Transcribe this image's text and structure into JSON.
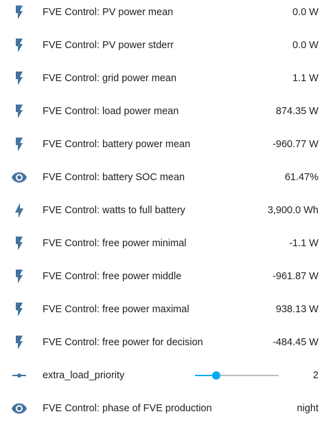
{
  "colors": {
    "icon": "#44739e",
    "accent": "#03a9f4",
    "track": "#bdbdbd",
    "text": "#212121"
  },
  "rows": [
    {
      "icon": "flash-icon",
      "label": "FVE Control: PV power mean",
      "value": "0.0 W"
    },
    {
      "icon": "flash-icon",
      "label": "FVE Control: PV power stderr",
      "value": "0.0 W"
    },
    {
      "icon": "flash-icon",
      "label": "FVE Control: grid power mean",
      "value": "1.1 W"
    },
    {
      "icon": "flash-icon",
      "label": "FVE Control: load power mean",
      "value": "874.35 W"
    },
    {
      "icon": "flash-icon",
      "label": "FVE Control: battery power mean",
      "value": "-960.77 W"
    },
    {
      "icon": "eye-icon",
      "label": "FVE Control: battery SOC mean",
      "value": "61.47%"
    },
    {
      "icon": "lightning-bolt-icon",
      "label": "FVE Control: watts to full battery",
      "value": "3,900.0 Wh"
    },
    {
      "icon": "flash-icon",
      "label": "FVE Control: free power minimal",
      "value": "-1.1 W"
    },
    {
      "icon": "flash-icon",
      "label": "FVE Control: free power middle",
      "value": "-961.87 W"
    },
    {
      "icon": "flash-icon",
      "label": "FVE Control: free power maximal",
      "value": "938.13 W"
    },
    {
      "icon": "flash-icon",
      "label": "FVE Control: free power for decision",
      "value": "-484.45 W"
    }
  ],
  "slider_row": {
    "icon": "ray-vertex-icon",
    "label": "extra_load_priority",
    "value": "2",
    "level": 0.25
  },
  "last_row": {
    "icon": "eye-icon",
    "label": "FVE Control: phase of FVE production",
    "value": "night"
  }
}
